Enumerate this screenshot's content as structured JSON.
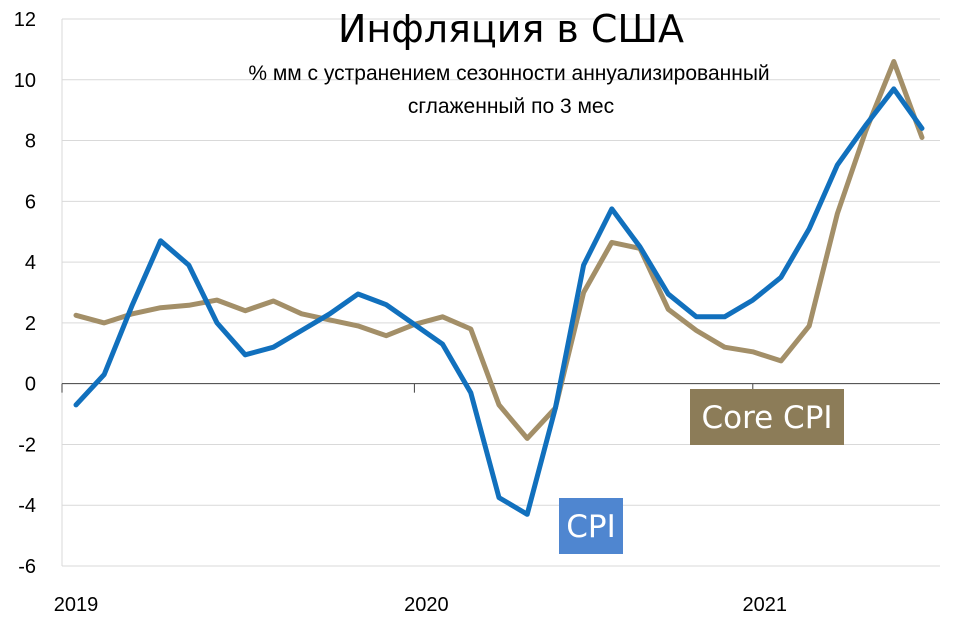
{
  "chart_data": {
    "type": "line",
    "title": "Инфляция в США",
    "subtitle_lines": [
      "% мм с устранением сезонности аннуализированный",
      "сглаженный по 3 мес"
    ],
    "ylim": [
      -6,
      12
    ],
    "y_ticks": [
      "12",
      "10",
      "8",
      "6",
      "4",
      "2",
      "0",
      "-2",
      "-4",
      "-6"
    ],
    "x_tick_labels": [
      "2019",
      "2020",
      "2021"
    ],
    "x_tick_index": [
      0,
      12,
      24
    ],
    "x": [
      "2019-01",
      "2019-02",
      "2019-03",
      "2019-04",
      "2019-05",
      "2019-06",
      "2019-07",
      "2019-08",
      "2019-09",
      "2019-10",
      "2019-11",
      "2019-12",
      "2020-01",
      "2020-02",
      "2020-03",
      "2020-04",
      "2020-05",
      "2020-06",
      "2020-07",
      "2020-08",
      "2020-09",
      "2020-10",
      "2020-11",
      "2020-12",
      "2021-01",
      "2021-02",
      "2021-03",
      "2021-04",
      "2021-05",
      "2021-06",
      "2021-07",
      "2021-08",
      "2021-09"
    ],
    "grid": "horizontal",
    "series": [
      {
        "name": "CPI",
        "color": "#1170bd",
        "label_bg": "#4f86d0",
        "values": [
          -0.7,
          0.3,
          2.6,
          4.7,
          3.9,
          2.0,
          0.95,
          1.2,
          1.75,
          2.3,
          2.95,
          2.6,
          1.95,
          1.3,
          -0.3,
          -3.75,
          -4.3,
          -0.8,
          3.9,
          5.75,
          4.5,
          2.95,
          2.2,
          2.2,
          2.75,
          3.5,
          5.1,
          7.2,
          8.5,
          9.7,
          8.4,
          null,
          null
        ]
      },
      {
        "name": "Core CPI",
        "color": "#a38f68",
        "label_bg": "#8c7c58",
        "values": [
          2.25,
          2.0,
          2.3,
          2.5,
          2.58,
          2.75,
          2.4,
          2.72,
          2.3,
          2.1,
          1.9,
          1.58,
          1.95,
          2.2,
          1.8,
          -0.7,
          -1.8,
          -0.8,
          3.0,
          4.65,
          4.45,
          2.45,
          1.75,
          1.2,
          1.05,
          0.75,
          1.9,
          5.6,
          8.3,
          10.6,
          8.1,
          null,
          null
        ]
      }
    ]
  }
}
